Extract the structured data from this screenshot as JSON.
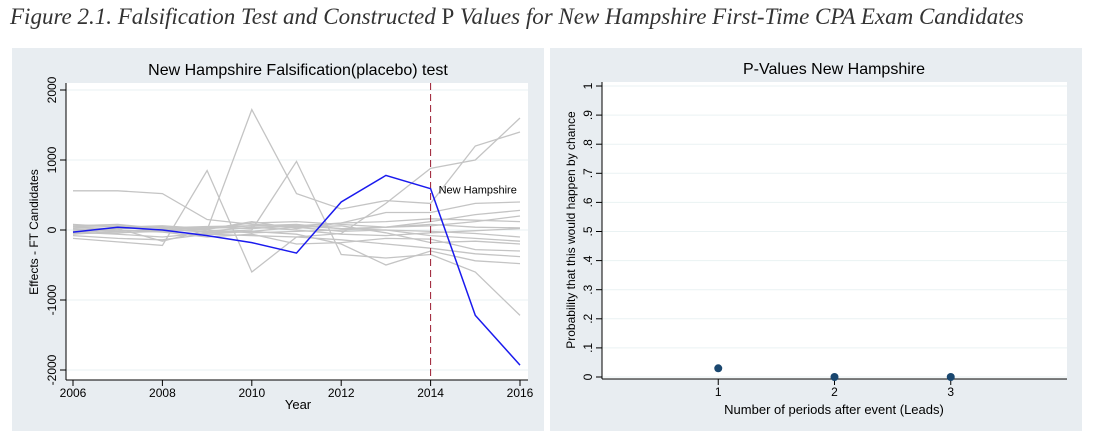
{
  "figure": {
    "title_part1": "Figure 2.1. Falsification Test and Constructed ",
    "title_p": "P",
    "title_part2": " Values for New Hampshire First-Time CPA Exam Candidates"
  },
  "colors": {
    "panel_bg": "#e8edf1",
    "plot_bg": "#ffffff",
    "placebo_line": "#c4c4c4",
    "treated_line": "#1a1aee",
    "event_line": "#9b1b30",
    "marker": "#1a476f",
    "grid": "#eaf2f3"
  },
  "chart_data": [
    {
      "type": "line",
      "title": "New Hampshire Falsification(placebo) test",
      "xlabel": "Year",
      "ylabel": "Effects - FT Candidates",
      "xlim": [
        2006,
        2016
      ],
      "ylim": [
        -2000,
        2000
      ],
      "xticks": [
        2006,
        2008,
        2010,
        2012,
        2014,
        2016
      ],
      "yticks": [
        -2000,
        -1000,
        0,
        1000,
        2000
      ],
      "event_year": 2014,
      "annotation": "New Hampshire",
      "treated": {
        "name": "New Hampshire",
        "x": [
          2006,
          2007,
          2008,
          2009,
          2010,
          2011,
          2012,
          2013,
          2014,
          2015,
          2016
        ],
        "y": [
          -30,
          40,
          0,
          -80,
          -180,
          -330,
          400,
          780,
          590,
          -1220,
          -1930
        ]
      },
      "placebo_x": [
        2006,
        2007,
        2008,
        2009,
        2010,
        2011,
        2012,
        2013,
        2014,
        2015,
        2016
      ],
      "placebo_series": [
        [
          560,
          560,
          520,
          150,
          80,
          60,
          20,
          40,
          60,
          120,
          200
        ],
        [
          -120,
          -170,
          -220,
          850,
          -600,
          -100,
          -50,
          380,
          880,
          1000,
          1600
        ],
        [
          40,
          20,
          -160,
          0,
          1720,
          520,
          300,
          420,
          380,
          1200,
          1400
        ],
        [
          -60,
          -20,
          10,
          -30,
          0,
          980,
          -350,
          -400,
          -350,
          -600,
          -1220
        ],
        [
          0,
          30,
          40,
          10,
          120,
          20,
          100,
          250,
          250,
          380,
          400
        ],
        [
          20,
          0,
          -30,
          -100,
          -60,
          -200,
          -180,
          -120,
          -130,
          -280,
          -300
        ],
        [
          -30,
          -60,
          -100,
          -40,
          -20,
          -60,
          -200,
          -500,
          -300,
          -440,
          -480
        ],
        [
          80,
          40,
          60,
          20,
          100,
          120,
          80,
          40,
          120,
          220,
          280
        ],
        [
          -80,
          -120,
          -140,
          -60,
          -20,
          40,
          60,
          -40,
          -180,
          -160,
          -200
        ],
        [
          50,
          60,
          30,
          50,
          60,
          80,
          20,
          0,
          -20,
          -50,
          -100
        ],
        [
          -40,
          0,
          -20,
          -60,
          -80,
          -100,
          -140,
          -200,
          -260,
          -340,
          -380
        ],
        [
          20,
          -20,
          0,
          40,
          20,
          60,
          100,
          120,
          160,
          140,
          120
        ],
        [
          -20,
          20,
          40,
          0,
          -40,
          -20,
          0,
          40,
          80,
          40,
          30
        ],
        [
          60,
          80,
          20,
          -20,
          40,
          0,
          -60,
          -80,
          -40,
          -10,
          20
        ],
        [
          -50,
          -40,
          -20,
          20,
          60,
          40,
          -20,
          0,
          -80,
          -120,
          -160
        ]
      ]
    },
    {
      "type": "scatter",
      "title": "P-Values New Hampshire",
      "xlabel": "Number of periods after event (Leads)",
      "ylabel": "Probability that this would happen by chance",
      "xlim": [
        0,
        4
      ],
      "ylim": [
        0,
        1
      ],
      "xticks": [
        "1",
        "2",
        "3"
      ],
      "yticks": [
        "0",
        ".1",
        ".2",
        ".3",
        ".4",
        ".5",
        ".6",
        ".7",
        ".8",
        ".9",
        "1"
      ],
      "x": [
        1,
        2,
        3
      ],
      "y": [
        0.03,
        0.0,
        0.0
      ]
    }
  ]
}
